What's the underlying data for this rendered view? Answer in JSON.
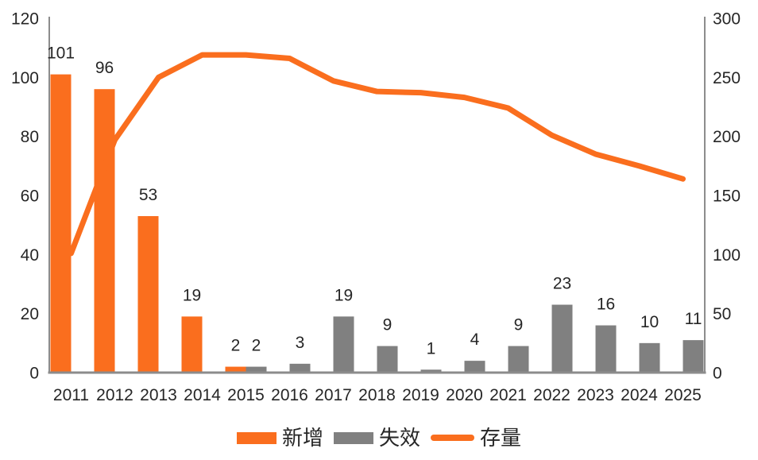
{
  "chart_data": {
    "type": "combo (bar + line)",
    "title": "",
    "categories": [
      "2011",
      "2012",
      "2013",
      "2014",
      "2015",
      "2016",
      "2017",
      "2018",
      "2019",
      "2020",
      "2021",
      "2022",
      "2023",
      "2024",
      "2025"
    ],
    "series": [
      {
        "key": "new",
        "name": "新增",
        "type": "bar",
        "axis": "left",
        "color": "#fa6e1e",
        "values": [
          101,
          96,
          53,
          19,
          2,
          null,
          null,
          null,
          null,
          null,
          null,
          null,
          null,
          null,
          null
        ]
      },
      {
        "key": "expired",
        "name": "失效",
        "type": "bar",
        "axis": "left",
        "color": "#808080",
        "values": [
          null,
          null,
          null,
          null,
          2,
          3,
          19,
          9,
          1,
          4,
          9,
          23,
          16,
          10,
          11
        ]
      },
      {
        "key": "stock",
        "name": "存量",
        "type": "line",
        "axis": "right",
        "color": "#fa6e1e",
        "values": [
          101,
          197,
          250,
          269,
          269,
          266,
          247,
          238,
          237,
          233,
          224,
          201,
          185,
          175,
          164
        ]
      }
    ],
    "left_axis": {
      "min": 0,
      "max": 120,
      "ticks": [
        0,
        20,
        40,
        60,
        80,
        100,
        120
      ]
    },
    "right_axis": {
      "min": 0,
      "max": 300,
      "ticks": [
        0,
        50,
        100,
        150,
        200,
        250,
        300
      ]
    },
    "legend_position": "bottom",
    "grid": false,
    "data_labels_shown_for": [
      "新增",
      "失效"
    ],
    "colors": {
      "axis": "#8c8c8c",
      "text": "#262626"
    }
  }
}
